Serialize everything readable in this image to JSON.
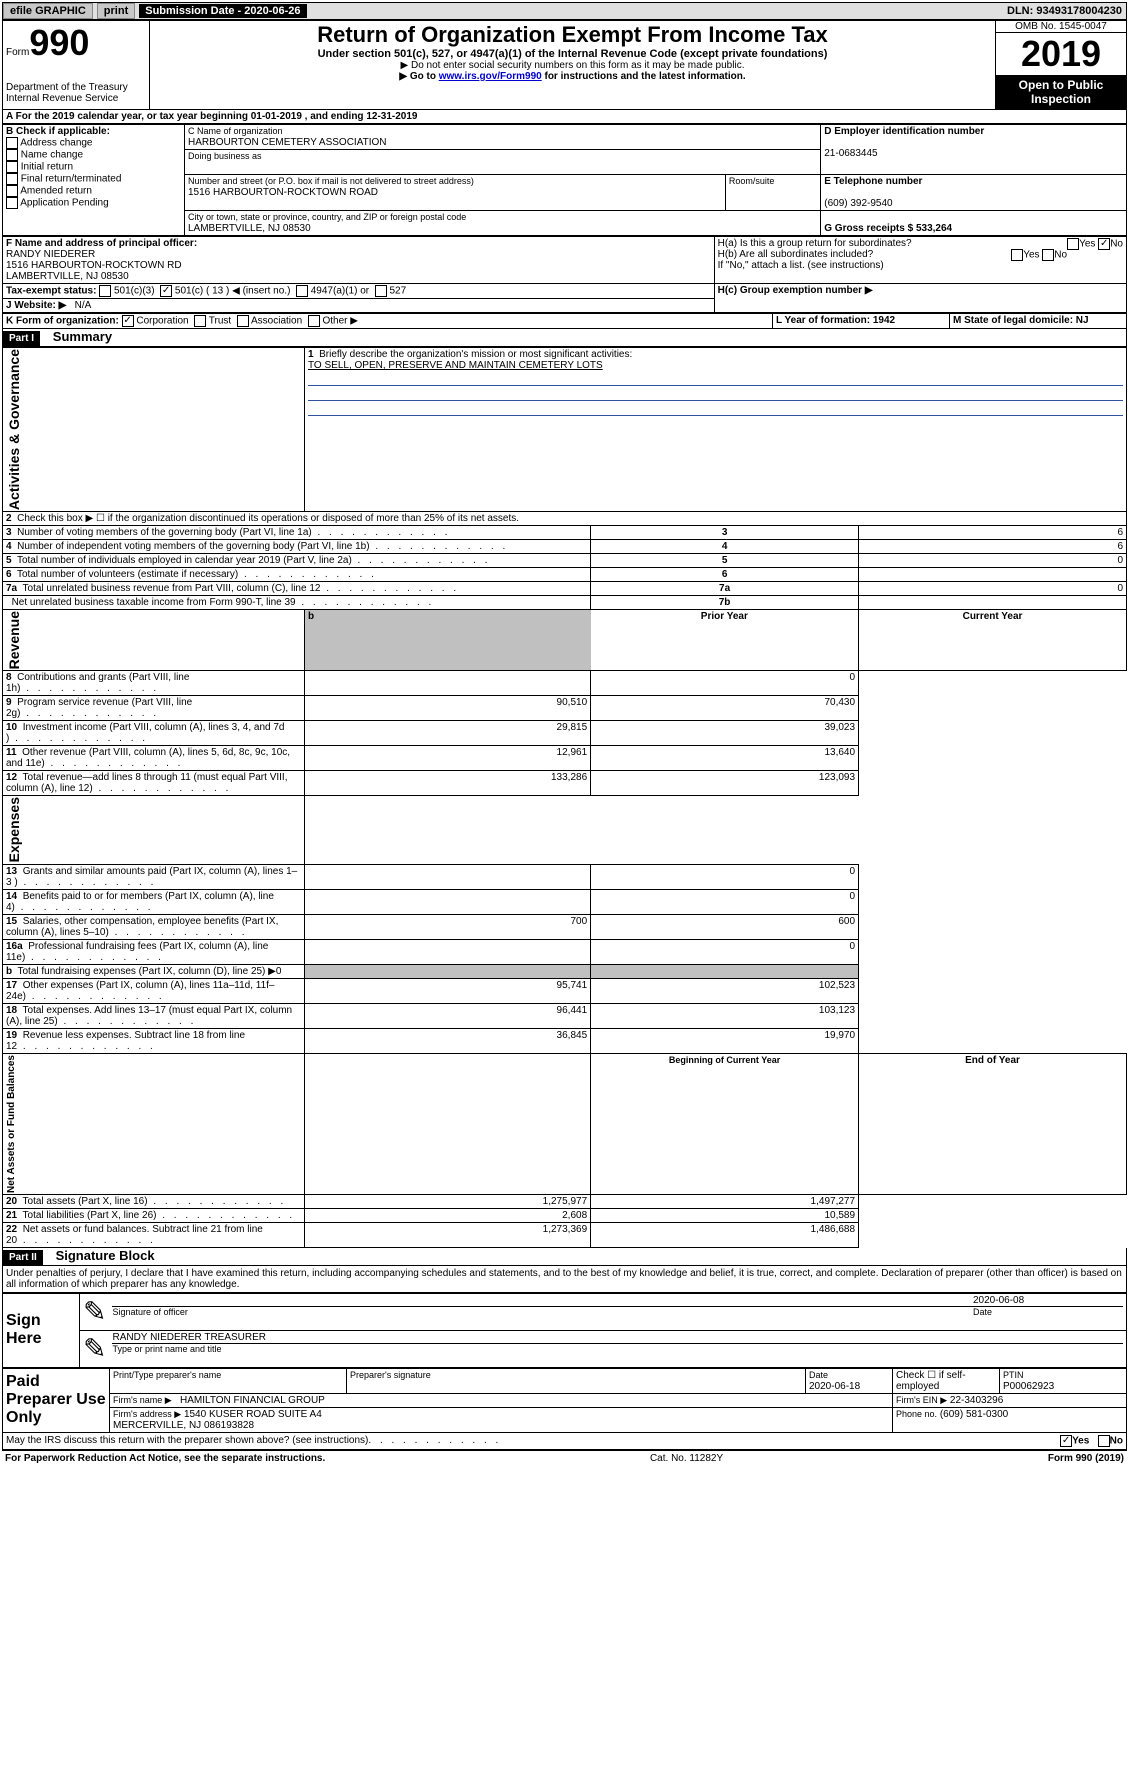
{
  "topbar": {
    "efile": "efile GRAPHIC",
    "print": "print",
    "sub_label": "Submission Date - 2020-06-26",
    "dln": "DLN: 93493178004230"
  },
  "header": {
    "form_word": "Form",
    "form_num": "990",
    "dept": "Department of the Treasury\nInternal Revenue Service",
    "title": "Return of Organization Exempt From Income Tax",
    "subtitle": "Under section 501(c), 527, or 4947(a)(1) of the Internal Revenue Code (except private foundations)",
    "instr1": "▶ Do not enter social security numbers on this form as it may be made public.",
    "instr2_pre": "▶ Go to ",
    "instr2_link": "www.irs.gov/Form990",
    "instr2_post": " for instructions and the latest information.",
    "omb": "OMB No. 1545-0047",
    "year": "2019",
    "open": "Open to Public Inspection"
  },
  "line_a": "A  For the 2019 calendar year, or tax year beginning 01-01-2019    , and ending 12-31-2019",
  "box_b": {
    "title": "B Check if applicable:",
    "opts": [
      "Address change",
      "Name change",
      "Initial return",
      "Final return/terminated",
      "Amended return",
      "Application Pending"
    ]
  },
  "box_c": {
    "c_label": "C Name of organization",
    "c_val": "HARBOURTON CEMETERY ASSOCIATION",
    "dba_label": "Doing business as",
    "addr_label": "Number and street (or P.O. box if mail is not delivered to street address)",
    "addr_val": "1516 HARBOURTON-ROCKTOWN ROAD",
    "room_label": "Room/suite",
    "city_label": "City or town, state or province, country, and ZIP or foreign postal code",
    "city_val": "LAMBERTVILLE, NJ  08530"
  },
  "box_d": {
    "label": "D Employer identification number",
    "val": "21-0683445"
  },
  "box_e": {
    "label": "E Telephone number",
    "val": "(609) 392-9540"
  },
  "box_g": {
    "label": "G Gross receipts $ 533,264"
  },
  "box_f": {
    "label": "F  Name and address of principal officer:",
    "name": "RANDY NIEDERER",
    "addr": "1516 HARBOURTON-ROCKTOWN RD\nLAMBERTVILLE, NJ  08530"
  },
  "box_h": {
    "a": "H(a)  Is this a group return for subordinates?",
    "b": "H(b)  Are all subordinates included?",
    "bnote": "If \"No,\" attach a list. (see instructions)",
    "c_label": "H(c)  Group exemption number ▶",
    "yes": "Yes",
    "no": "No"
  },
  "box_i": {
    "label": "Tax-exempt status:",
    "o1": "501(c)(3)",
    "o2": "501(c) ( 13 ) ◀ (insert no.)",
    "o3": "4947(a)(1) or",
    "o4": "527"
  },
  "box_j": {
    "label": "J  Website: ▶",
    "val": "N/A"
  },
  "box_k": {
    "label": "K Form of organization:",
    "o1": "Corporation",
    "o2": "Trust",
    "o3": "Association",
    "o4": "Other ▶"
  },
  "box_l": {
    "label": "L Year of formation: 1942"
  },
  "box_m": {
    "label": "M State of legal domicile: NJ"
  },
  "part1": {
    "label": "Part I",
    "title": "Summary",
    "q1": "Briefly describe the organization's mission or most significant activities:",
    "q1_val": "TO SELL, OPEN, PRESERVE AND MAINTAIN CEMETERY LOTS",
    "sidebar1": "Activities & Governance",
    "sidebar2": "Revenue",
    "sidebar3": "Expenses",
    "sidebar4": "Net Assets or Fund Balances",
    "rows_a": [
      {
        "n": "2",
        "t": "Check this box ▶ ☐  if the organization discontinued its operations or disposed of more than 25% of its net assets."
      },
      {
        "n": "3",
        "t": "Number of voting members of the governing body (Part VI, line 1a)",
        "box": "3",
        "v": "6"
      },
      {
        "n": "4",
        "t": "Number of independent voting members of the governing body (Part VI, line 1b)",
        "box": "4",
        "v": "6"
      },
      {
        "n": "5",
        "t": "Total number of individuals employed in calendar year 2019 (Part V, line 2a)",
        "box": "5",
        "v": "0"
      },
      {
        "n": "6",
        "t": "Total number of volunteers (estimate if necessary)",
        "box": "6",
        "v": ""
      },
      {
        "n": "7a",
        "t": "Total unrelated business revenue from Part VIII, column (C), line 12",
        "box": "7a",
        "v": "0"
      },
      {
        "n": "",
        "t": "Net unrelated business taxable income from Form 990-T, line 39",
        "box": "7b",
        "v": ""
      }
    ],
    "head_prior": "Prior Year",
    "head_curr": "Current Year",
    "rows_r": [
      {
        "n": "8",
        "t": "Contributions and grants (Part VIII, line 1h)",
        "p": "",
        "c": "0"
      },
      {
        "n": "9",
        "t": "Program service revenue (Part VIII, line 2g)",
        "p": "90,510",
        "c": "70,430"
      },
      {
        "n": "10",
        "t": "Investment income (Part VIII, column (A), lines 3, 4, and 7d )",
        "p": "29,815",
        "c": "39,023"
      },
      {
        "n": "11",
        "t": "Other revenue (Part VIII, column (A), lines 5, 6d, 8c, 9c, 10c, and 11e)",
        "p": "12,961",
        "c": "13,640"
      },
      {
        "n": "12",
        "t": "Total revenue—add lines 8 through 11 (must equal Part VIII, column (A), line 12)",
        "p": "133,286",
        "c": "123,093"
      }
    ],
    "rows_e": [
      {
        "n": "13",
        "t": "Grants and similar amounts paid (Part IX, column (A), lines 1–3 )",
        "p": "",
        "c": "0"
      },
      {
        "n": "14",
        "t": "Benefits paid to or for members (Part IX, column (A), line 4)",
        "p": "",
        "c": "0"
      },
      {
        "n": "15",
        "t": "Salaries, other compensation, employee benefits (Part IX, column (A), lines 5–10)",
        "p": "700",
        "c": "600"
      },
      {
        "n": "16a",
        "t": "Professional fundraising fees (Part IX, column (A), line 11e)",
        "p": "",
        "c": "0"
      },
      {
        "n": "b",
        "t": "Total fundraising expenses (Part IX, column (D), line 25) ▶0",
        "p": "GRAY",
        "c": "GRAY"
      },
      {
        "n": "17",
        "t": "Other expenses (Part IX, column (A), lines 11a–11d, 11f–24e)",
        "p": "95,741",
        "c": "102,523"
      },
      {
        "n": "18",
        "t": "Total expenses. Add lines 13–17 (must equal Part IX, column (A), line 25)",
        "p": "96,441",
        "c": "103,123"
      },
      {
        "n": "19",
        "t": "Revenue less expenses. Subtract line 18 from line 12",
        "p": "36,845",
        "c": "19,970"
      }
    ],
    "head_begin": "Beginning of Current Year",
    "head_end": "End of Year",
    "rows_n": [
      {
        "n": "20",
        "t": "Total assets (Part X, line 16)",
        "p": "1,275,977",
        "c": "1,497,277"
      },
      {
        "n": "21",
        "t": "Total liabilities (Part X, line 26)",
        "p": "2,608",
        "c": "10,589"
      },
      {
        "n": "22",
        "t": "Net assets or fund balances. Subtract line 21 from line 20",
        "p": "1,273,369",
        "c": "1,486,688"
      }
    ]
  },
  "part2": {
    "label": "Part II",
    "title": "Signature Block",
    "perjury": "Under penalties of perjury, I declare that I have examined this return, including accompanying schedules and statements, and to the best of my knowledge and belief, it is true, correct, and complete. Declaration of preparer (other than officer) is based on all information of which preparer has any knowledge.",
    "sign": "Sign Here",
    "sig_date": "2020-06-08",
    "sig_label1": "Signature of officer",
    "sig_label2": "Date",
    "sig_name": "RANDY NIEDERER  TREASURER",
    "sig_label3": "Type or print name and title",
    "paid": "Paid Preparer Use Only",
    "p_name_label": "Print/Type preparer's name",
    "p_sig_label": "Preparer's signature",
    "p_date_label": "Date",
    "p_date": "2020-06-18",
    "p_check": "Check ☐ if self-employed",
    "p_ptin_label": "PTIN",
    "p_ptin": "P00062923",
    "firm_name_label": "Firm's name      ▶",
    "firm_name": "HAMILTON FINANCIAL GROUP",
    "firm_ein_label": "Firm's EIN ▶",
    "firm_ein": "22-3403296",
    "firm_addr_label": "Firm's address ▶",
    "firm_addr": "1540 KUSER ROAD SUITE A4\nMERCERVILLE, NJ  086193828",
    "phone_label": "Phone no.",
    "phone": "(609) 581-0300",
    "discuss": "May the IRS discuss this return with the preparer shown above? (see instructions)",
    "pra": "For Paperwork Reduction Act Notice, see the separate instructions.",
    "cat": "Cat. No. 11282Y",
    "formno": "Form 990 (2019)"
  }
}
